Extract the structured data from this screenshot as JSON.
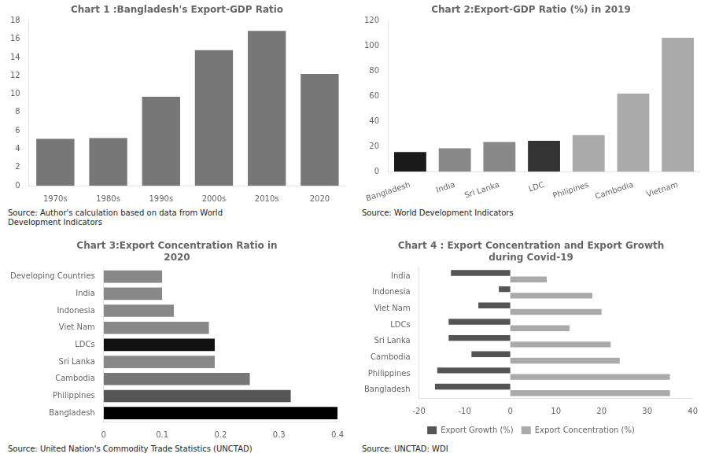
{
  "chart_data": [
    {
      "type": "bar",
      "title": "Chart 1 :Bangladesh's Export-GDP Ratio",
      "categories": [
        "1970s",
        "1980s",
        "1990s",
        "2000s",
        "2010s",
        "2020"
      ],
      "values": [
        5.1,
        5.2,
        9.7,
        14.8,
        16.9,
        12.2
      ],
      "color": "#777777",
      "ylim": [
        0,
        18
      ],
      "yticks": [
        0,
        2,
        4,
        6,
        8,
        10,
        12,
        14,
        16,
        18
      ],
      "grid": false,
      "annotations": [
        "Source: Author's calculation based on data from World\nDevelopment Indicators"
      ]
    },
    {
      "type": "bar",
      "title": "Chart 2:Export-GDP Ratio (%) in 2019",
      "categories": [
        "Bangladesh",
        "India",
        "Sri Lanka",
        "LDC",
        "Philipines",
        "Cambodia",
        "Vietnam"
      ],
      "values": [
        15.5,
        18.5,
        23.5,
        24.5,
        29.0,
        62.0,
        106.5
      ],
      "colors": [
        "#1a1a1a",
        "#888888",
        "#888888",
        "#333333",
        "#aaaaaa",
        "#aaaaaa",
        "#aaaaaa"
      ],
      "ylim": [
        0,
        120
      ],
      "yticks": [
        0,
        20,
        40,
        60,
        80,
        100,
        120
      ],
      "grid": false,
      "annotations": [
        "Source: World Development Indicators"
      ]
    },
    {
      "type": "bar",
      "orientation": "horizontal",
      "title": "Chart 3:Export Concentration Ratio in\n2020",
      "categories": [
        "Bangladesh",
        "Philippines",
        "Cambodia",
        "Sri Lanka",
        "LDCs",
        "Viet Nam",
        "Indonesia",
        "India",
        "Developing Countries"
      ],
      "values": [
        0.4,
        0.32,
        0.25,
        0.19,
        0.19,
        0.18,
        0.12,
        0.1,
        0.1
      ],
      "colors": [
        "#000000",
        "#555555",
        "#777777",
        "#888888",
        "#111111",
        "#888888",
        "#888888",
        "#888888",
        "#888888"
      ],
      "xlim": [
        0,
        0.4
      ],
      "xticks": [
        0,
        0.1,
        0.2,
        0.3,
        0.4
      ],
      "grid": false,
      "annotations": [
        "Source: United Nation's Commodity Trade Statistics (UNCTAD)"
      ]
    },
    {
      "type": "bar",
      "orientation": "horizontal",
      "title": "Chart 4 : Export Concentration and Export Growth\nduring Covid-19",
      "categories": [
        "Bangladesh",
        "Philippines",
        "Cambodia",
        "Sri Lanka",
        "LDCs",
        "Viet Nam",
        "Indonesia",
        "India"
      ],
      "series": [
        {
          "name": "Export Growth (%)",
          "color": "#555555",
          "values": [
            -16.5,
            -16.0,
            -8.5,
            -13.5,
            -13.5,
            -7.0,
            -2.5,
            -13.0
          ]
        },
        {
          "name": "Export Concentration (%)",
          "color": "#aaaaaa",
          "values": [
            35.0,
            35.0,
            24.0,
            22.0,
            13.0,
            20.0,
            18.0,
            8.0
          ]
        }
      ],
      "xlim": [
        -20,
        40
      ],
      "xticks": [
        -20,
        -10,
        0,
        10,
        20,
        30,
        40
      ],
      "grid": false,
      "legend": "bottom",
      "annotations": [
        "Source: UNCTAD: WDI"
      ]
    }
  ]
}
